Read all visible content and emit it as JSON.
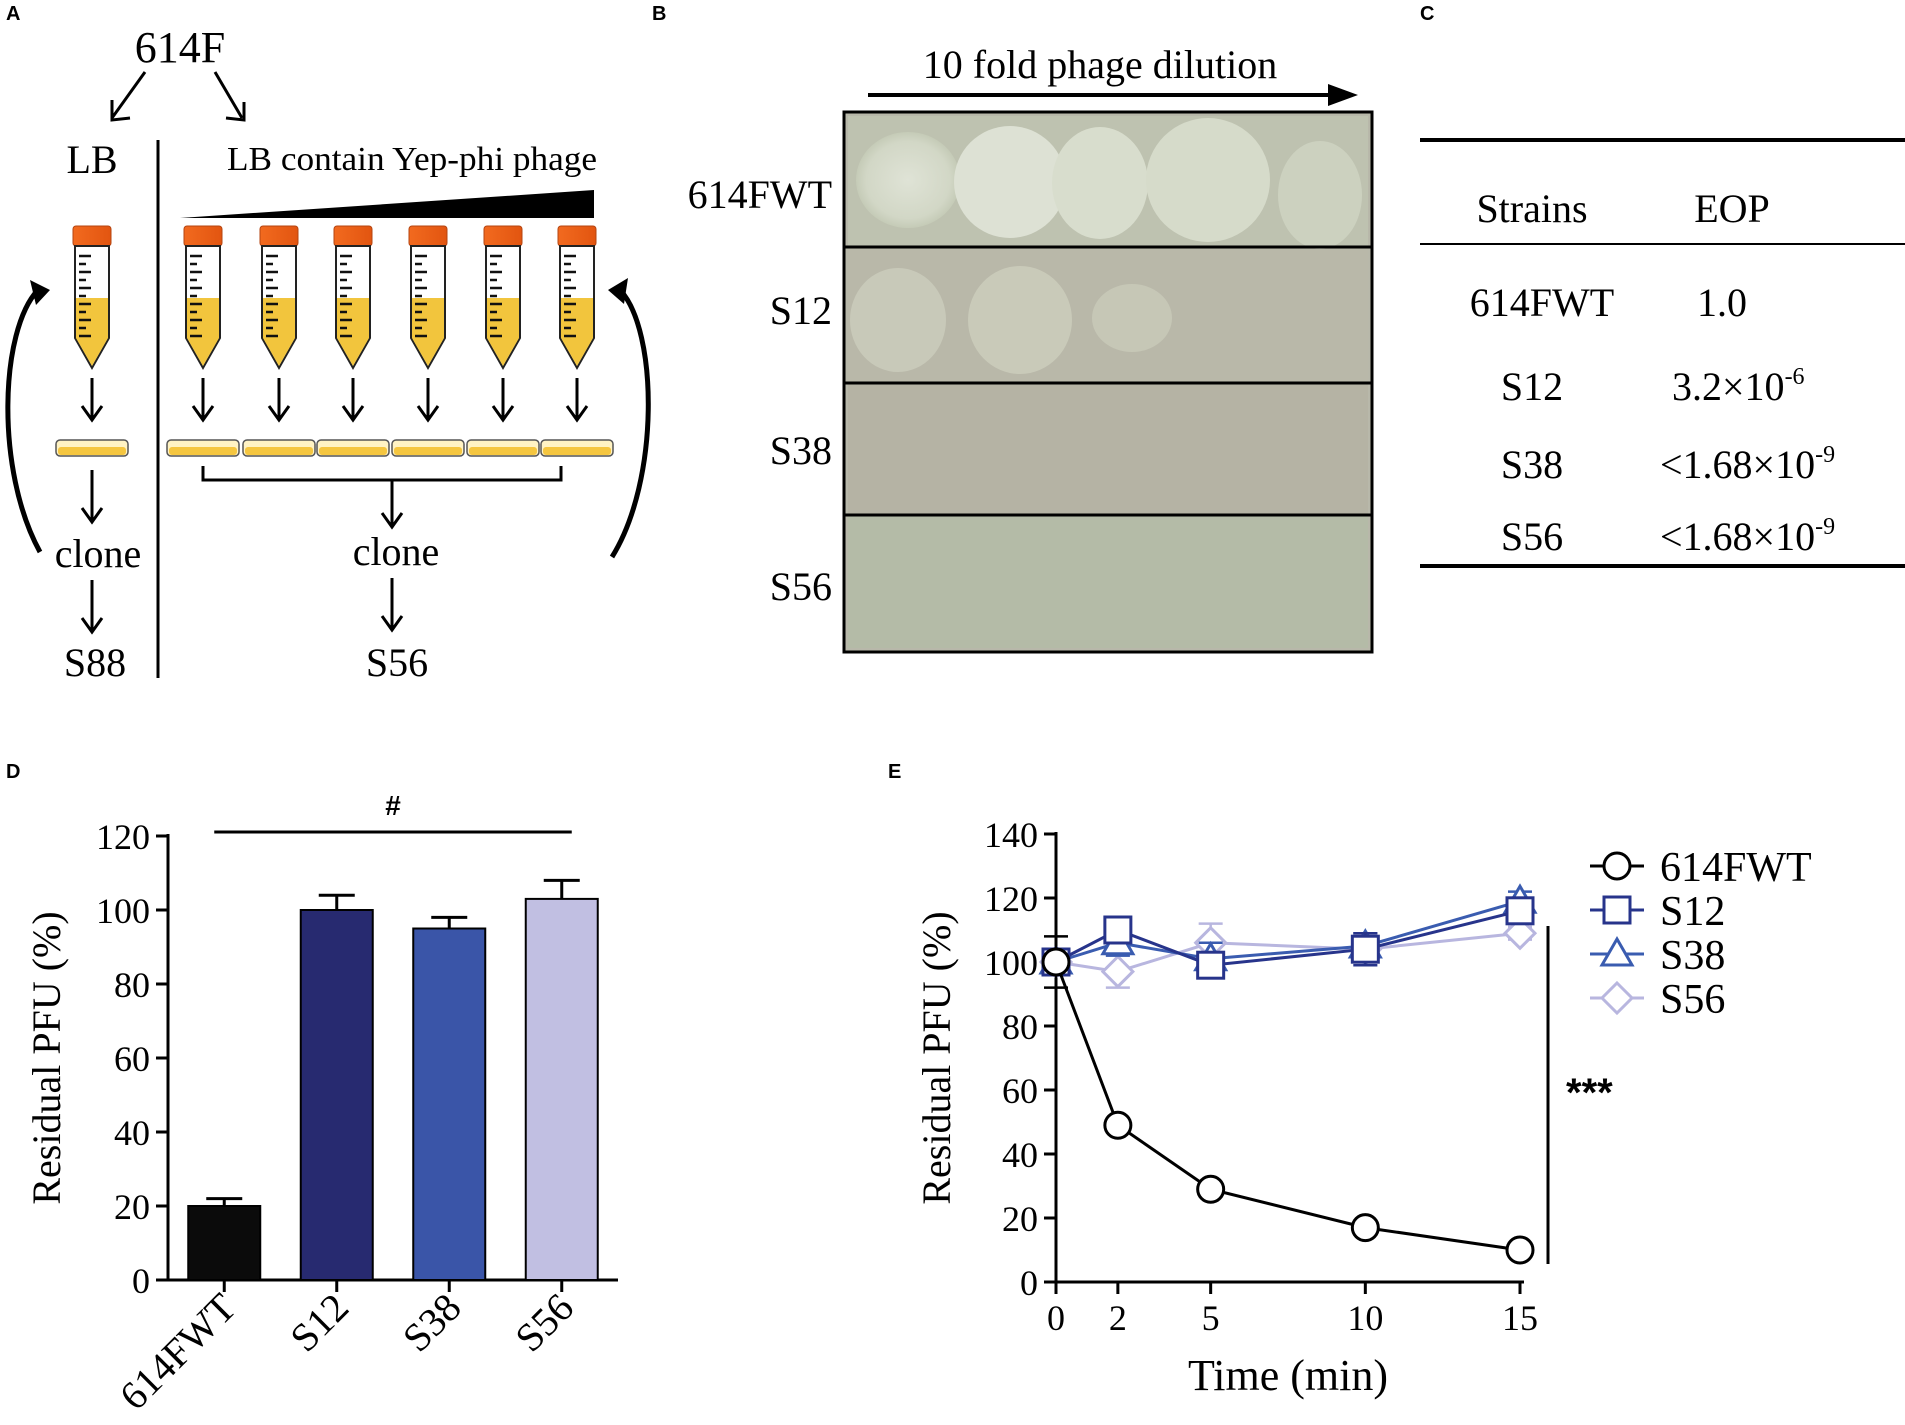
{
  "panels": {
    "A": {
      "label": "A",
      "parent": "614F",
      "left_medium": "LB",
      "right_medium": "LB contain  Yep-phi phage",
      "left_clone": "clone",
      "right_clone": "clone",
      "left_result": "S88",
      "right_result": "S56"
    },
    "B": {
      "label": "B",
      "header": "10 fold phage dilution",
      "rows": [
        "614FWT",
        "S12",
        "S38",
        "S56"
      ]
    },
    "C": {
      "label": "C",
      "col_strains": "Strains",
      "col_eop": "EOP",
      "rows": [
        {
          "strain": "614FWT",
          "eop": "1.0",
          "sup": ""
        },
        {
          "strain": "S12",
          "eop": "3.2×10",
          "sup": "-6"
        },
        {
          "strain": "S38",
          "eop": "<1.68×10",
          "sup": "-9"
        },
        {
          "strain": "S56",
          "eop": "<1.68×10",
          "sup": "-9"
        }
      ]
    },
    "D": {
      "label": "D"
    },
    "E": {
      "label": "E"
    }
  },
  "chart_data": [
    {
      "type": "bar",
      "panel": "D",
      "categories": [
        "614FWT",
        "S12",
        "S38",
        "S56"
      ],
      "values": [
        20,
        100,
        95,
        103
      ],
      "errors": [
        2,
        4,
        3,
        5
      ],
      "colors": [
        "#0b0b0b",
        "#272a70",
        "#3a55a8",
        "#c1bfe2"
      ],
      "ylabel": "Residual PFU (%)",
      "ylim": [
        0,
        120
      ],
      "yticks": [
        0,
        20,
        40,
        60,
        80,
        100,
        120
      ],
      "annotation": "#"
    },
    {
      "type": "line",
      "panel": "E",
      "x": [
        0,
        2,
        5,
        10,
        15
      ],
      "xticks": [
        0,
        2,
        5,
        10,
        15
      ],
      "xlim": [
        0,
        15
      ],
      "ylim": [
        0,
        140
      ],
      "yticks": [
        0,
        20,
        40,
        60,
        80,
        100,
        120,
        140
      ],
      "xlabel": "Time (min)",
      "ylabel": "Residual PFU (%)",
      "legend_position": "top-right",
      "annotation": "***",
      "series": [
        {
          "name": "614FWT",
          "marker": "circle",
          "color": "#000000",
          "values": [
            100,
            49,
            29,
            17,
            10
          ],
          "errors": [
            8,
            0,
            0,
            0,
            0
          ]
        },
        {
          "name": "S12",
          "marker": "square",
          "color": "#27348b",
          "values": [
            100,
            110,
            99,
            104,
            116
          ],
          "errors": [
            3,
            4,
            4,
            5,
            3
          ]
        },
        {
          "name": "S38",
          "marker": "triangle",
          "color": "#3a5cb0",
          "values": [
            100,
            106,
            101,
            105,
            119
          ],
          "errors": [
            3,
            4,
            5,
            4,
            3
          ]
        },
        {
          "name": "S56",
          "marker": "diamond",
          "color": "#b8b6df",
          "values": [
            100,
            97,
            106,
            104,
            109
          ],
          "errors": [
            3,
            5,
            6,
            5,
            2
          ]
        }
      ]
    }
  ]
}
